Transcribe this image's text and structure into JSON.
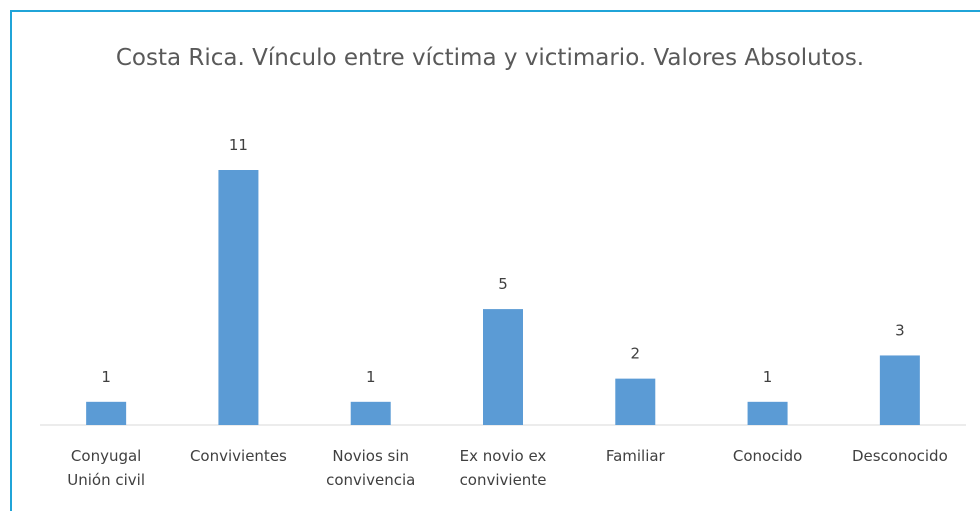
{
  "chart_data": {
    "type": "bar",
    "title": "Costa Rica. Vínculo entre víctima y victimario. Valores Absolutos.",
    "categories": [
      "Conyugal\nUnión civil",
      "Convivientes",
      "Novios sin\nconvivencia",
      "Ex novio ex\nconviviente",
      "Familiar",
      "Conocido",
      "Desconocido"
    ],
    "values": [
      1,
      11,
      1,
      5,
      2,
      1,
      3
    ],
    "color": "#5b9bd5"
  }
}
